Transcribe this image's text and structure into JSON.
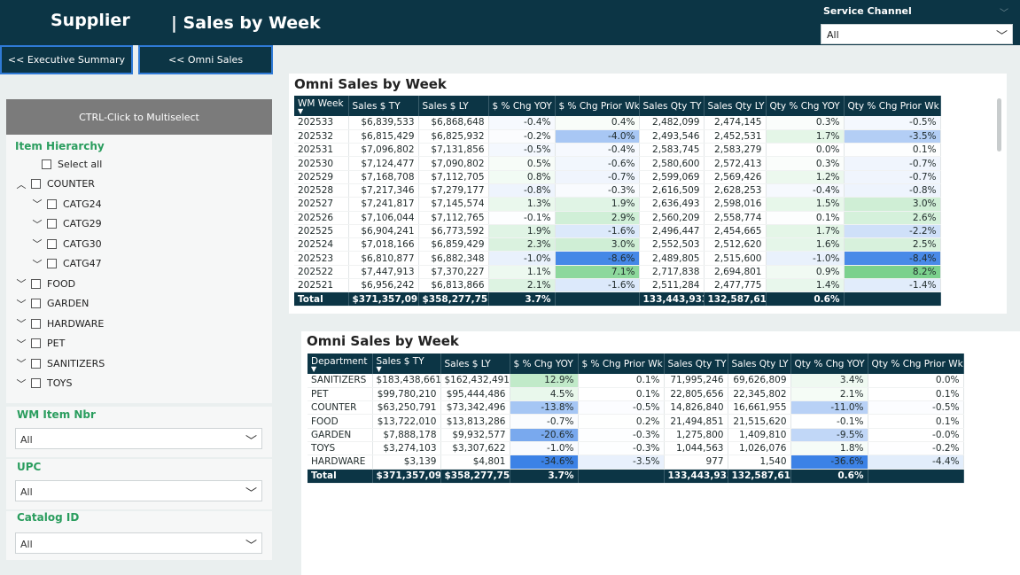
{
  "header": {
    "brand": "Supplier",
    "title": "| Sales by Week"
  },
  "service_channel": {
    "label": "Service Channel",
    "value": "All"
  },
  "nav": {
    "exec_summary": "<< Executive Summary",
    "omni_sales": "<< Omni Sales"
  },
  "slicer": {
    "ctrl_hint": "CTRL-Click to Multiselect",
    "item_hierarchy_title": "Item Hierarchy",
    "items": [
      {
        "label": "Select all",
        "chevron": ""
      },
      {
        "label": "COUNTER",
        "chevron": "︿"
      },
      {
        "label": "CATG24",
        "chevron": "﹀"
      },
      {
        "label": "CATG29",
        "chevron": "﹀"
      },
      {
        "label": "CATG30",
        "chevron": "﹀"
      },
      {
        "label": "CATG47",
        "chevron": "﹀"
      },
      {
        "label": "FOOD",
        "chevron": "﹀"
      },
      {
        "label": "GARDEN",
        "chevron": "﹀"
      },
      {
        "label": "HARDWARE",
        "chevron": "﹀"
      },
      {
        "label": "PET",
        "chevron": "﹀"
      },
      {
        "label": "SANITIZERS",
        "chevron": "﹀"
      },
      {
        "label": "TOYS",
        "chevron": "﹀"
      }
    ],
    "wm_item_nbr": {
      "title": "WM Item Nbr",
      "value": "All"
    },
    "upc": {
      "title": "UPC",
      "value": "All"
    },
    "catalog_id": {
      "title": "Catalog ID",
      "value": "All"
    }
  },
  "week_table": {
    "title": "Omni Sales by Week",
    "headers": [
      "WM Week",
      "Sales $ TY",
      "Sales $ LY",
      "$ % Chg YOY",
      "$ % Chg Prior Wk",
      "Sales Qty TY",
      "Sales Qty LY",
      "Qty % Chg YOY",
      "Qty % Chg Prior Wk"
    ],
    "rows": [
      [
        "202533",
        "$6,839,533",
        "$6,868,648",
        "-0.4%",
        "0.4%",
        "2,482,099",
        "2,474,145",
        "0.3%",
        "-0.5%"
      ],
      [
        "202532",
        "$6,815,429",
        "$6,825,932",
        "-0.2%",
        "-4.0%",
        "2,493,546",
        "2,452,531",
        "1.7%",
        "-3.5%"
      ],
      [
        "202531",
        "$7,096,802",
        "$7,131,856",
        "-0.5%",
        "-0.4%",
        "2,583,745",
        "2,583,279",
        "0.0%",
        "0.1%"
      ],
      [
        "202530",
        "$7,124,477",
        "$7,090,802",
        "0.5%",
        "-0.6%",
        "2,580,600",
        "2,572,413",
        "0.3%",
        "-0.7%"
      ],
      [
        "202529",
        "$7,168,708",
        "$7,112,705",
        "0.8%",
        "-0.7%",
        "2,599,069",
        "2,569,426",
        "1.2%",
        "-0.7%"
      ],
      [
        "202528",
        "$7,217,346",
        "$7,279,177",
        "-0.8%",
        "-0.3%",
        "2,616,509",
        "2,628,253",
        "-0.4%",
        "-0.8%"
      ],
      [
        "202527",
        "$7,241,817",
        "$7,145,574",
        "1.3%",
        "1.9%",
        "2,636,493",
        "2,598,016",
        "1.5%",
        "3.0%"
      ],
      [
        "202526",
        "$7,106,044",
        "$7,112,765",
        "-0.1%",
        "2.9%",
        "2,560,209",
        "2,558,774",
        "0.1%",
        "2.6%"
      ],
      [
        "202525",
        "$6,904,241",
        "$6,773,592",
        "1.9%",
        "-1.6%",
        "2,496,447",
        "2,454,665",
        "1.7%",
        "-2.2%"
      ],
      [
        "202524",
        "$7,018,166",
        "$6,859,429",
        "2.3%",
        "3.0%",
        "2,552,503",
        "2,512,620",
        "1.6%",
        "2.5%"
      ],
      [
        "202523",
        "$6,810,877",
        "$6,882,348",
        "-1.0%",
        "-8.6%",
        "2,489,805",
        "2,515,600",
        "-1.0%",
        "-8.4%"
      ],
      [
        "202522",
        "$7,447,913",
        "$7,370,227",
        "1.1%",
        "7.1%",
        "2,717,838",
        "2,694,801",
        "0.9%",
        "8.2%"
      ],
      [
        "202521",
        "$6,956,242",
        "$6,813,866",
        "2.1%",
        "-1.6%",
        "2,511,284",
        "2,477,775",
        "1.4%",
        "-1.4%"
      ]
    ],
    "total": [
      "Total",
      "$371,357,092",
      "$358,277,758",
      "3.7%",
      "",
      "133,443,933",
      "132,587,612",
      "0.6%",
      ""
    ]
  },
  "dept_table": {
    "title": "Omni Sales by Week",
    "headers": [
      "Department",
      "Sales $ TY",
      "Sales $ LY",
      "$ % Chg YOY",
      "$ % Chg Prior Wk",
      "Sales Qty TY",
      "Sales Qty LY",
      "Qty % Chg YOY",
      "Qty % Chg Prior Wk"
    ],
    "rows": [
      [
        "SANITIZERS",
        "$183,438,661",
        "$162,432,491",
        "12.9%",
        "0.1%",
        "71,995,246",
        "69,626,809",
        "3.4%",
        "0.0%"
      ],
      [
        "PET",
        "$99,780,210",
        "$95,444,486",
        "4.5%",
        "0.1%",
        "22,805,656",
        "22,345,802",
        "2.1%",
        "0.1%"
      ],
      [
        "COUNTER",
        "$63,250,791",
        "$73,342,496",
        "-13.8%",
        "-0.5%",
        "14,826,840",
        "16,661,955",
        "-11.0%",
        "-0.5%"
      ],
      [
        "FOOD",
        "$13,722,010",
        "$13,813,286",
        "-0.7%",
        "0.2%",
        "21,494,851",
        "21,515,620",
        "-0.1%",
        "0.1%"
      ],
      [
        "GARDEN",
        "$7,888,178",
        "$9,932,577",
        "-20.6%",
        "-0.3%",
        "1,275,800",
        "1,409,810",
        "-9.5%",
        "-0.0%"
      ],
      [
        "TOYS",
        "$3,274,103",
        "$3,307,622",
        "-1.0%",
        "-0.3%",
        "1,044,563",
        "1,026,076",
        "1.8%",
        "-0.2%"
      ],
      [
        "HARDWARE",
        "$3,139",
        "$4,801",
        "-34.6%",
        "-3.5%",
        "977",
        "1,540",
        "-36.6%",
        "-4.4%"
      ]
    ],
    "total": [
      "Total",
      "$371,357,092",
      "$358,277,758",
      "3.7%",
      "",
      "133,443,933",
      "132,587,612",
      "0.6%",
      ""
    ]
  },
  "colors": {
    "header_bg": "#0c3545",
    "accent_green": "#2a9d5e",
    "nav_border": "#2f7ad6"
  }
}
